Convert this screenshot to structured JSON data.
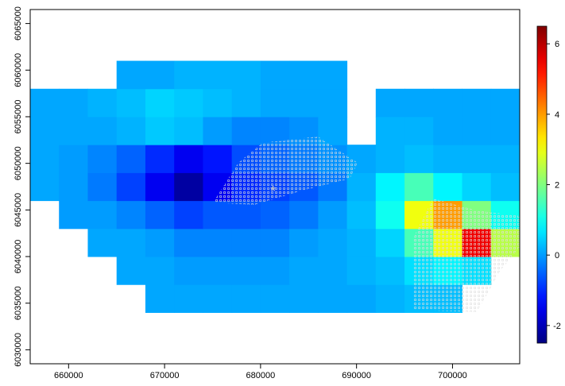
{
  "chart_data": {
    "type": "heatmap",
    "xbins": [
      656000,
      659000,
      662000,
      665000,
      668000,
      671000,
      674000,
      677000,
      680000,
      683000,
      686000,
      689000,
      692000,
      695000,
      698000,
      701000,
      704000,
      707000
    ],
    "ybins": [
      6034000,
      6037000,
      6040000,
      6043000,
      6046000,
      6049000,
      6052000,
      6055000,
      6058000,
      6061000
    ],
    "values": [
      [
        null,
        null,
        null,
        null,
        0.1,
        0.1,
        0.1,
        0.1,
        0.1,
        0.1,
        0.1,
        0.1,
        0.2,
        0.3,
        0.3,
        null,
        null
      ],
      [
        null,
        null,
        null,
        0.1,
        0.1,
        0,
        0,
        0,
        0,
        0.1,
        0.1,
        0.2,
        0.3,
        0.6,
        0.8,
        0.6,
        null
      ],
      [
        null,
        null,
        0.1,
        0.1,
        0,
        -0.2,
        -0.2,
        -0.2,
        -0.2,
        0,
        0.1,
        0.2,
        0.5,
        1.5,
        3,
        5.5,
        2.5
      ],
      [
        null,
        0,
        0,
        -0.2,
        -0.5,
        -0.8,
        -0.6,
        -0.6,
        -0.5,
        -0.3,
        0,
        0.3,
        1,
        3,
        4,
        2,
        1
      ],
      [
        0.1,
        0,
        -0.3,
        -0.8,
        -1.5,
        -2.2,
        -1.5,
        -1,
        -0.8,
        -0.6,
        -0.3,
        0.2,
        0.8,
        1.5,
        0.8,
        0.5,
        0.3
      ],
      [
        0.1,
        0,
        -0.2,
        -0.5,
        -1,
        -1.5,
        -1.2,
        -0.7,
        -0.5,
        -0.3,
        -0.1,
        0.1,
        0.2,
        0.3,
        0.2,
        0.2,
        0.2
      ],
      [
        0.1,
        0.1,
        0.1,
        0.2,
        0.4,
        0.3,
        0,
        -0.2,
        -0.2,
        -0.1,
        0.1,
        null,
        0.2,
        0.2,
        0.1,
        0.1,
        0.1
      ],
      [
        0.1,
        0.1,
        0.2,
        0.3,
        0.5,
        0.4,
        0.3,
        0.2,
        0.1,
        0.1,
        0.1,
        null,
        0.1,
        0.1,
        0.1,
        0.1,
        0.1
      ],
      [
        null,
        null,
        null,
        0.1,
        0.1,
        0.2,
        0.2,
        0.2,
        0.1,
        0.1,
        0.1,
        null,
        null,
        null,
        null,
        null,
        null
      ]
    ],
    "points": {
      "x": [
        681300
      ],
      "y": [
        6046900
      ]
    },
    "xlim": [
      656000,
      707000
    ],
    "ylim": [
      6028500,
      6066500
    ],
    "xticks": [
      660000,
      670000,
      680000,
      690000,
      700000
    ],
    "yticks": [
      6030000,
      6035000,
      6040000,
      6045000,
      6050000,
      6055000,
      6060000,
      6065000
    ],
    "zlim": [
      -2.5,
      6.5
    ],
    "zticks": [
      -2,
      0,
      2,
      4,
      6
    ],
    "colormap": "jet"
  }
}
